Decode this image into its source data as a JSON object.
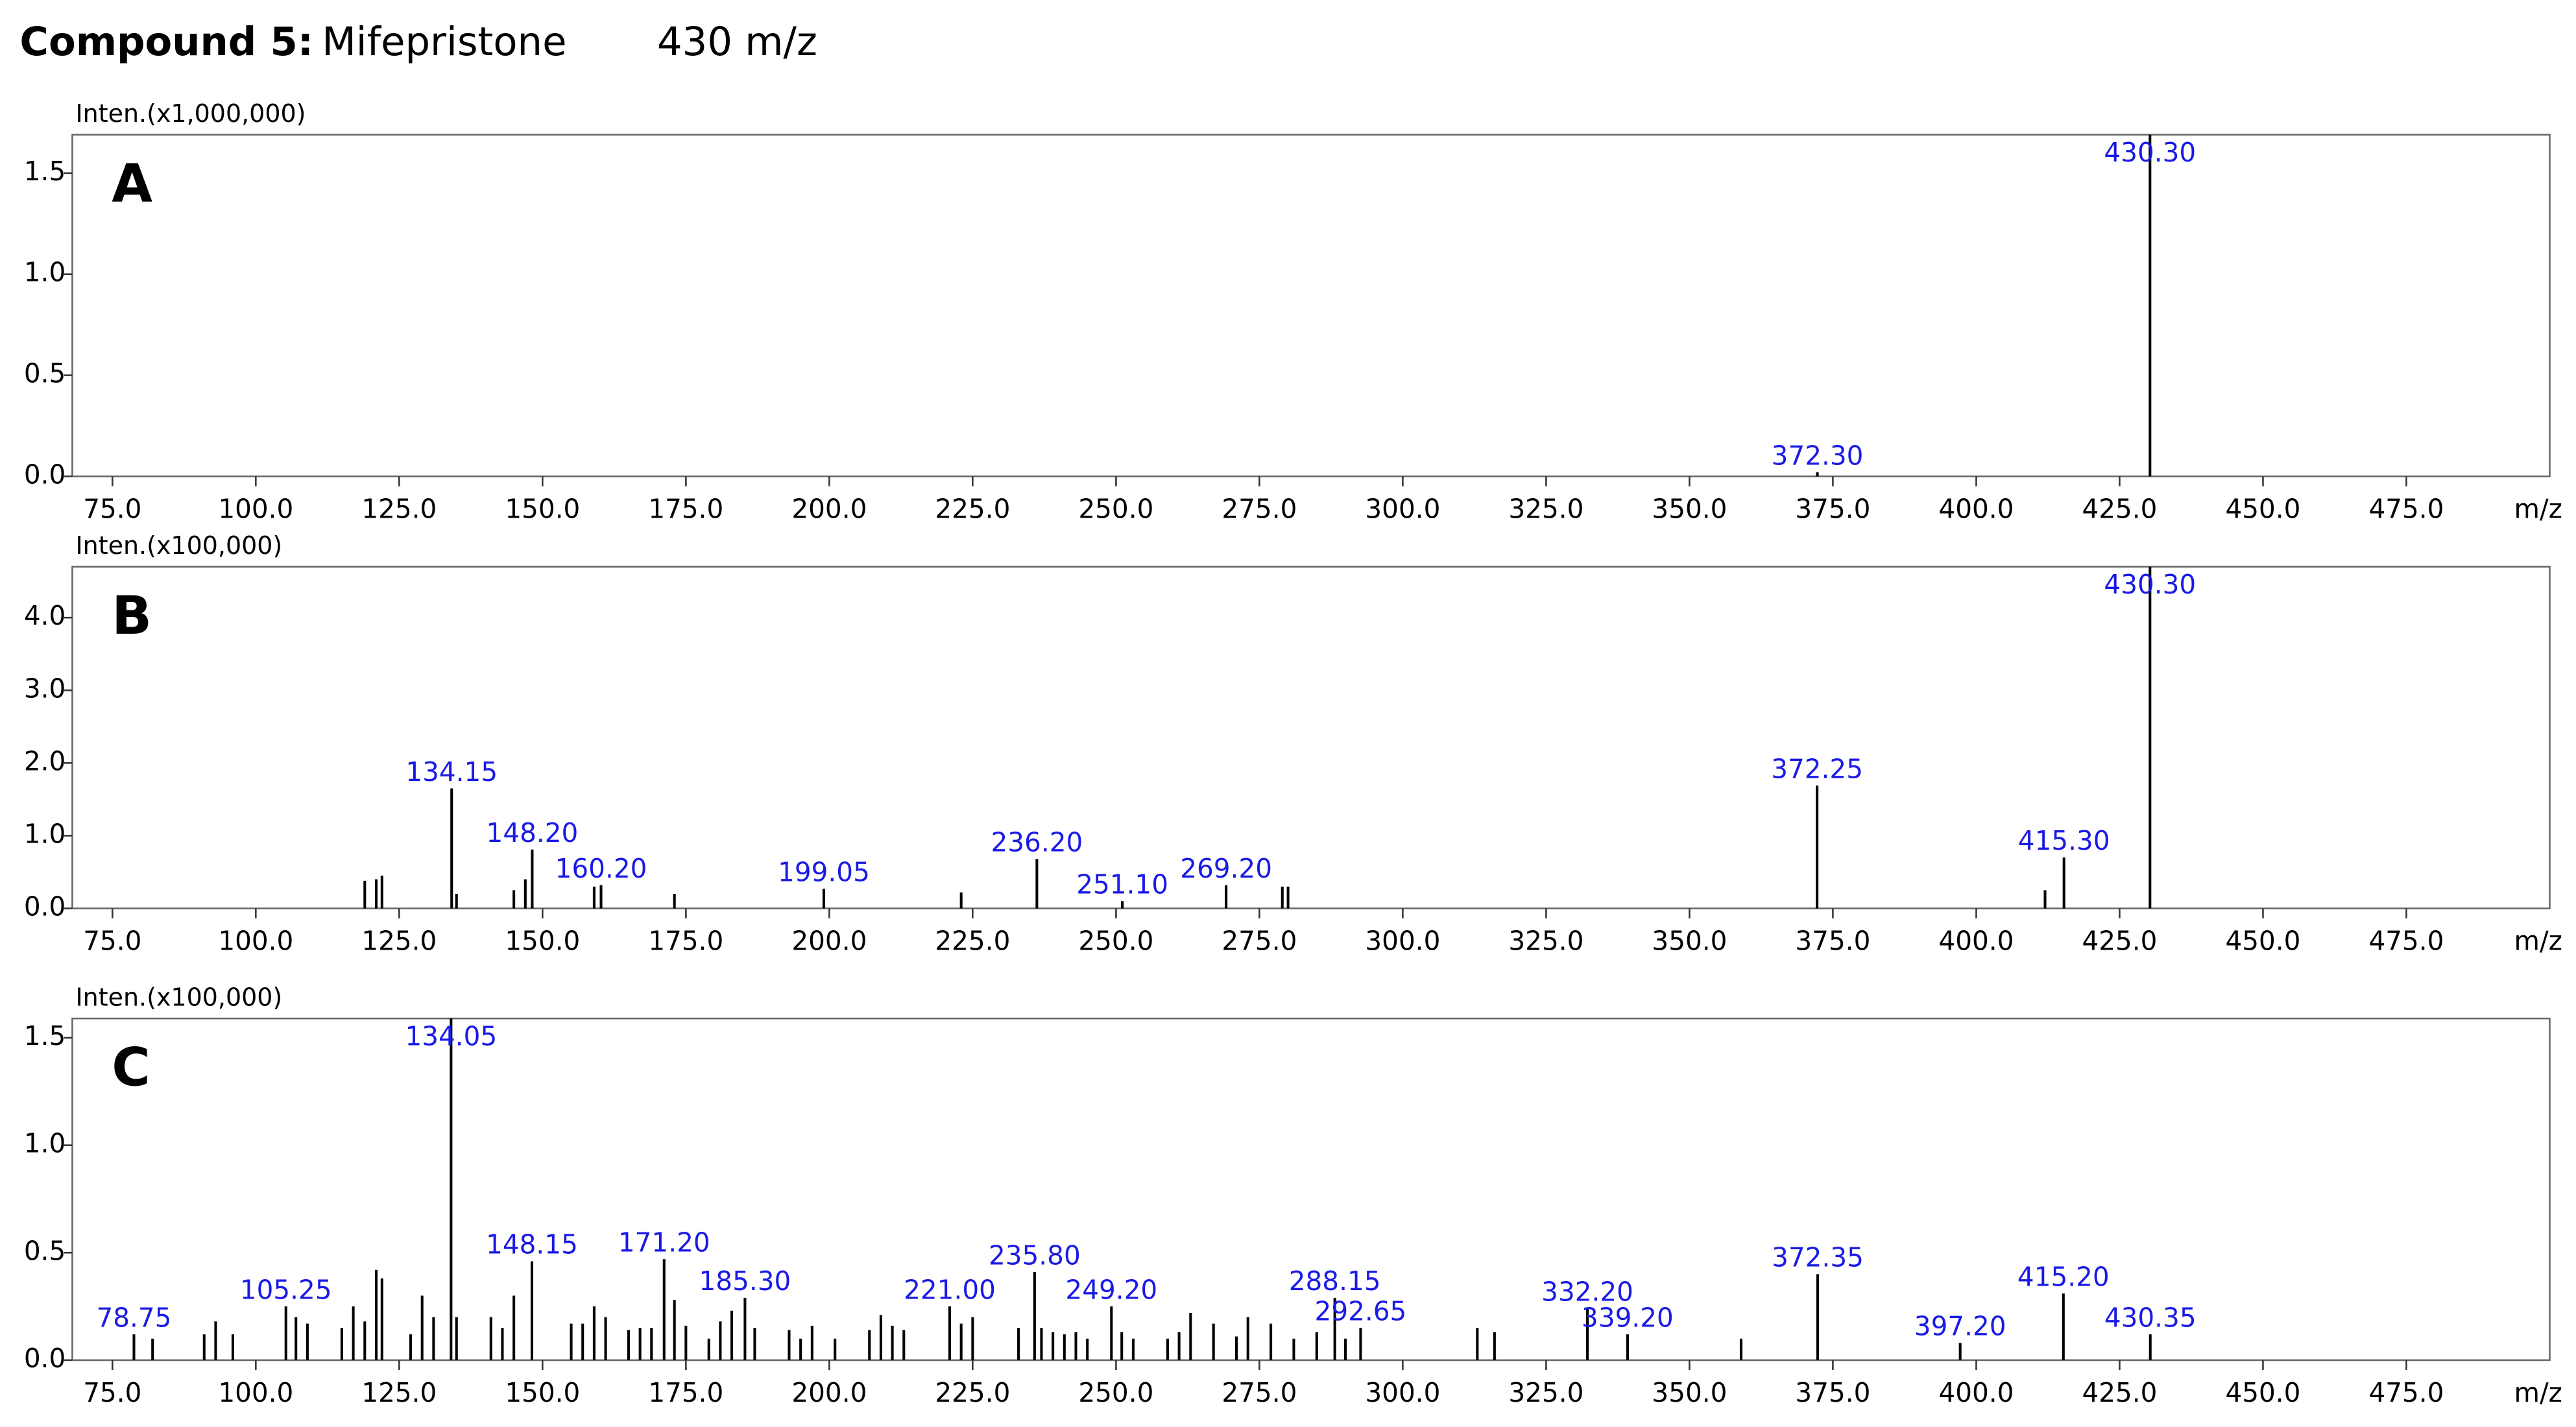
{
  "title": "Compound 5:",
  "compound": "Mifepristone",
  "mz": "430 m/z",
  "chart_data": [
    {
      "type": "bar",
      "panel": "A",
      "y_label": "Inten.(x1,000,000)",
      "x_label": "m/z",
      "xlim": [
        68,
        500
      ],
      "ylim": [
        0,
        1.69
      ],
      "xticks": [
        {
          "value": 75,
          "label": "75.0"
        },
        {
          "value": 100,
          "label": "100.0"
        },
        {
          "value": 125,
          "label": "125.0"
        },
        {
          "value": 150,
          "label": "150.0"
        },
        {
          "value": 175,
          "label": "175.0"
        },
        {
          "value": 200,
          "label": "200.0"
        },
        {
          "value": 225,
          "label": "225.0"
        },
        {
          "value": 250,
          "label": "250.0"
        },
        {
          "value": 275,
          "label": "275.0"
        },
        {
          "value": 300,
          "label": "300.0"
        },
        {
          "value": 325,
          "label": "325.0"
        },
        {
          "value": 350,
          "label": "350.0"
        },
        {
          "value": 375,
          "label": "375.0"
        },
        {
          "value": 400,
          "label": "400.0"
        },
        {
          "value": 425,
          "label": "425.0"
        },
        {
          "value": 450,
          "label": "450.0"
        },
        {
          "value": 475,
          "label": "475.0"
        }
      ],
      "yticks": [
        {
          "value": 0,
          "label": "0.0"
        },
        {
          "value": 0.5,
          "label": "0.5"
        },
        {
          "value": 1,
          "label": "1.0"
        },
        {
          "value": 1.5,
          "label": "1.5"
        }
      ],
      "color": "#000000",
      "label_color": "#1a1ae6",
      "x": [
        372.3,
        430.3
      ],
      "values": [
        0.02,
        1.69
      ],
      "x_labels": [
        "372.30",
        "430.30"
      ]
    },
    {
      "type": "bar",
      "panel": "B",
      "y_label": "Inten.(x100,000)",
      "x_label": "m/z",
      "xlim": [
        68,
        500
      ],
      "ylim": [
        0,
        4.7
      ],
      "xticks": [
        {
          "value": 75,
          "label": "75.0"
        },
        {
          "value": 100,
          "label": "100.0"
        },
        {
          "value": 125,
          "label": "125.0"
        },
        {
          "value": 150,
          "label": "150.0"
        },
        {
          "value": 175,
          "label": "175.0"
        },
        {
          "value": 200,
          "label": "200.0"
        },
        {
          "value": 225,
          "label": "225.0"
        },
        {
          "value": 250,
          "label": "250.0"
        },
        {
          "value": 275,
          "label": "275.0"
        },
        {
          "value": 300,
          "label": "300.0"
        },
        {
          "value": 325,
          "label": "325.0"
        },
        {
          "value": 350,
          "label": "350.0"
        },
        {
          "value": 375,
          "label": "375.0"
        },
        {
          "value": 400,
          "label": "400.0"
        },
        {
          "value": 425,
          "label": "425.0"
        },
        {
          "value": 450,
          "label": "450.0"
        },
        {
          "value": 475,
          "label": "475.0"
        }
      ],
      "yticks": [
        {
          "value": 0,
          "label": "0.0"
        },
        {
          "value": 1,
          "label": "1.0"
        },
        {
          "value": 2,
          "label": "2.0"
        },
        {
          "value": 3,
          "label": "3.0"
        },
        {
          "value": 4,
          "label": "4.0"
        }
      ],
      "color": "#000000",
      "label_color": "#1a1ae6",
      "x": [
        119,
        121,
        122,
        134.15,
        135,
        145,
        147,
        148.2,
        159,
        160.2,
        173,
        199.05,
        223,
        236.2,
        251.1,
        269.2,
        279,
        280,
        372.25,
        412,
        415.3,
        430.3
      ],
      "values": [
        0.38,
        0.4,
        0.45,
        1.65,
        0.2,
        0.25,
        0.4,
        0.81,
        0.3,
        0.32,
        0.2,
        0.27,
        0.22,
        0.68,
        0.1,
        0.32,
        0.3,
        0.3,
        1.69,
        0.25,
        0.7,
        4.7
      ],
      "x_labels": [
        null,
        null,
        null,
        "134.15",
        null,
        null,
        null,
        "148.20",
        null,
        "160.20",
        null,
        "199.05",
        null,
        "236.20",
        "251.10",
        "269.20",
        null,
        null,
        "372.25",
        null,
        "415.30",
        "430.30"
      ]
    },
    {
      "type": "bar",
      "panel": "C",
      "y_label": "Inten.(x100,000)",
      "x_label": "m/z",
      "xlim": [
        68,
        500
      ],
      "ylim": [
        0,
        1.59
      ],
      "xticks": [
        {
          "value": 75,
          "label": "75.0"
        },
        {
          "value": 100,
          "label": "100.0"
        },
        {
          "value": 125,
          "label": "125.0"
        },
        {
          "value": 150,
          "label": "150.0"
        },
        {
          "value": 175,
          "label": "175.0"
        },
        {
          "value": 200,
          "label": "200.0"
        },
        {
          "value": 225,
          "label": "225.0"
        },
        {
          "value": 250,
          "label": "250.0"
        },
        {
          "value": 275,
          "label": "275.0"
        },
        {
          "value": 300,
          "label": "300.0"
        },
        {
          "value": 325,
          "label": "325.0"
        },
        {
          "value": 350,
          "label": "350.0"
        },
        {
          "value": 375,
          "label": "375.0"
        },
        {
          "value": 400,
          "label": "400.0"
        },
        {
          "value": 425,
          "label": "425.0"
        },
        {
          "value": 450,
          "label": "450.0"
        },
        {
          "value": 475,
          "label": "475.0"
        }
      ],
      "yticks": [
        {
          "value": 0,
          "label": "0.0"
        },
        {
          "value": 0.5,
          "label": "0.5"
        },
        {
          "value": 1,
          "label": "1.0"
        },
        {
          "value": 1.5,
          "label": "1.5"
        }
      ],
      "color": "#000000",
      "label_color": "#1a1ae6",
      "x": [
        78.75,
        82,
        91,
        93,
        96,
        105.25,
        107,
        109,
        115,
        117,
        119,
        121,
        122,
        127,
        129,
        131,
        134.05,
        135,
        141,
        143,
        145,
        148.15,
        155,
        157,
        159,
        161,
        165,
        167,
        169,
        171.2,
        173,
        175,
        179,
        181,
        183,
        185.3,
        187,
        193,
        195,
        197,
        201,
        207,
        209,
        211,
        213,
        221,
        223,
        225,
        233,
        235.8,
        237,
        239,
        241,
        243,
        245,
        249.2,
        251,
        253,
        259,
        261,
        263,
        267,
        271,
        273,
        277,
        281,
        285,
        288.15,
        290,
        292.65,
        313,
        316,
        332.2,
        339.2,
        359,
        372.35,
        397.2,
        415.2,
        430.35
      ],
      "values": [
        0.12,
        0.1,
        0.12,
        0.18,
        0.12,
        0.25,
        0.2,
        0.17,
        0.15,
        0.25,
        0.18,
        0.42,
        0.38,
        0.12,
        0.3,
        0.2,
        1.59,
        0.2,
        0.2,
        0.15,
        0.3,
        0.46,
        0.17,
        0.17,
        0.25,
        0.2,
        0.14,
        0.15,
        0.15,
        0.47,
        0.28,
        0.16,
        0.1,
        0.18,
        0.23,
        0.29,
        0.15,
        0.14,
        0.1,
        0.16,
        0.1,
        0.14,
        0.21,
        0.16,
        0.14,
        0.25,
        0.17,
        0.2,
        0.15,
        0.41,
        0.15,
        0.13,
        0.12,
        0.13,
        0.1,
        0.25,
        0.13,
        0.1,
        0.1,
        0.13,
        0.22,
        0.17,
        0.11,
        0.2,
        0.17,
        0.1,
        0.13,
        0.29,
        0.1,
        0.15,
        0.15,
        0.13,
        0.24,
        0.12,
        0.1,
        0.4,
        0.08,
        0.31,
        0.12
      ],
      "x_labels": [
        "78.75",
        null,
        null,
        null,
        null,
        "105.25",
        null,
        null,
        null,
        null,
        null,
        null,
        null,
        null,
        null,
        null,
        "134.05",
        null,
        null,
        null,
        null,
        "148.15",
        null,
        null,
        null,
        null,
        null,
        null,
        null,
        "171.20",
        null,
        null,
        null,
        null,
        null,
        "185.30",
        null,
        null,
        null,
        null,
        null,
        null,
        null,
        null,
        null,
        "221.00",
        null,
        null,
        null,
        "235.80",
        null,
        null,
        null,
        null,
        null,
        "249.20",
        null,
        null,
        null,
        null,
        null,
        null,
        null,
        null,
        null,
        null,
        null,
        "288.15",
        null,
        "292.65",
        null,
        null,
        "332.20",
        "339.20",
        null,
        "372.35",
        "397.20",
        "415.20",
        "430.35"
      ]
    }
  ]
}
